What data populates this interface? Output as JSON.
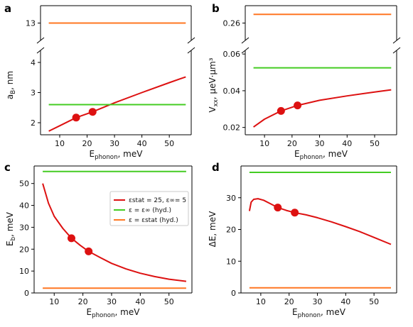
{
  "colors": {
    "red": "#dd1111",
    "green": "#44cc22",
    "orange": "#ff7722"
  },
  "legend": {
    "entries": [
      {
        "text": "εstat = 25, ε∞= 5",
        "color": "#dd1111"
      },
      {
        "text": "ε = ε∞ (hyd.)",
        "color": "#44cc22"
      },
      {
        "text": "ε = εstat (hyd.)",
        "color": "#ff7722"
      }
    ]
  },
  "chart_data": [
    {
      "panel": "a",
      "type": "line",
      "xlabel": "Ephonon, meV",
      "ylabel": "aB, nm",
      "xlim": [
        3,
        58
      ],
      "xticks": [
        10,
        20,
        30,
        40,
        50
      ],
      "broken_axis": true,
      "upper": {
        "ylim": [
          12.8,
          13.2
        ],
        "yticks": [
          13
        ]
      },
      "lower": {
        "ylim": [
          1.6,
          4.4
        ],
        "yticks": [
          2,
          3,
          4
        ]
      },
      "series": [
        {
          "color": "#dd1111",
          "segment": "lower",
          "x": [
            6,
            10,
            16,
            22,
            30,
            40,
            50,
            56
          ],
          "y": [
            1.72,
            1.9,
            2.17,
            2.36,
            2.66,
            3.0,
            3.33,
            3.52
          ]
        },
        {
          "color": "#44cc22",
          "segment": "lower",
          "x": [
            6,
            56
          ],
          "y": [
            2.6,
            2.6
          ]
        },
        {
          "color": "#ff7722",
          "segment": "upper",
          "x": [
            6,
            56
          ],
          "y": [
            13.0,
            13.0
          ]
        }
      ],
      "markers": {
        "x": [
          16,
          22
        ],
        "y": [
          2.17,
          2.36
        ]
      }
    },
    {
      "panel": "b",
      "type": "line",
      "xlabel": "Ephonon, meV",
      "ylabel": "Vxx, μeV·μm³",
      "xlim": [
        3,
        58
      ],
      "xticks": [
        10,
        20,
        30,
        40,
        50
      ],
      "broken_axis": true,
      "upper": {
        "ylim": [
          0.255,
          0.265
        ],
        "yticks": [
          0.26
        ]
      },
      "lower": {
        "ylim": [
          0.016,
          0.062
        ],
        "yticks": [
          0.02,
          0.04,
          0.06
        ]
      },
      "series": [
        {
          "color": "#dd1111",
          "segment": "lower",
          "x": [
            6,
            10,
            16,
            22,
            30,
            40,
            50,
            56
          ],
          "y": [
            0.0202,
            0.0245,
            0.029,
            0.032,
            0.0348,
            0.0372,
            0.0393,
            0.0405
          ]
        },
        {
          "color": "#44cc22",
          "segment": "lower",
          "x": [
            6,
            56
          ],
          "y": [
            0.0525,
            0.0525
          ]
        },
        {
          "color": "#ff7722",
          "segment": "upper",
          "x": [
            6,
            56
          ],
          "y": [
            0.2625,
            0.2625
          ]
        }
      ],
      "markers": {
        "x": [
          16,
          22
        ],
        "y": [
          0.029,
          0.032
        ]
      }
    },
    {
      "panel": "c",
      "type": "line",
      "xlabel": "Ephonon, meV",
      "ylabel": "Eb, meV",
      "xlim": [
        3,
        58
      ],
      "ylim": [
        0,
        58
      ],
      "xticks": [
        10,
        20,
        30,
        40,
        50
      ],
      "yticks": [
        0,
        10,
        20,
        30,
        40,
        50
      ],
      "series": [
        {
          "color": "#dd1111",
          "x": [
            6,
            8,
            10,
            13,
            16,
            19,
            22,
            26,
            30,
            35,
            40,
            45,
            50,
            56
          ],
          "y": [
            50,
            41,
            35,
            29.5,
            25,
            21.8,
            19,
            16.2,
            13.5,
            11,
            9,
            7.5,
            6.3,
            5.3
          ]
        },
        {
          "color": "#44cc22",
          "x": [
            6,
            56
          ],
          "y": [
            55.5,
            55.5
          ]
        },
        {
          "color": "#ff7722",
          "x": [
            6,
            56
          ],
          "y": [
            2.2,
            2.2
          ]
        }
      ],
      "markers": {
        "x": [
          16,
          22
        ],
        "y": [
          25,
          19
        ]
      }
    },
    {
      "panel": "d",
      "type": "line",
      "xlabel": "Ephonon, meV",
      "ylabel": "ΔE, meV",
      "xlim": [
        3,
        58
      ],
      "ylim": [
        0,
        40
      ],
      "xticks": [
        10,
        20,
        30,
        40,
        50
      ],
      "yticks": [
        0,
        10,
        20,
        30
      ],
      "series": [
        {
          "color": "#dd1111",
          "x": [
            6,
            6.6,
            7.5,
            9,
            11,
            13,
            16,
            19,
            22,
            26,
            30,
            35,
            40,
            45,
            50,
            56
          ],
          "y": [
            25.8,
            28.6,
            29.5,
            29.7,
            29.2,
            28.3,
            26.9,
            26.0,
            25.3,
            24.6,
            23.7,
            22.4,
            20.9,
            19.3,
            17.5,
            15.3
          ]
        },
        {
          "color": "#44cc22",
          "x": [
            6,
            56
          ],
          "y": [
            38,
            38
          ]
        },
        {
          "color": "#ff7722",
          "x": [
            6,
            56
          ],
          "y": [
            1.6,
            1.6
          ]
        }
      ],
      "markers": {
        "x": [
          16,
          22
        ],
        "y": [
          26.9,
          25.3
        ]
      }
    }
  ]
}
